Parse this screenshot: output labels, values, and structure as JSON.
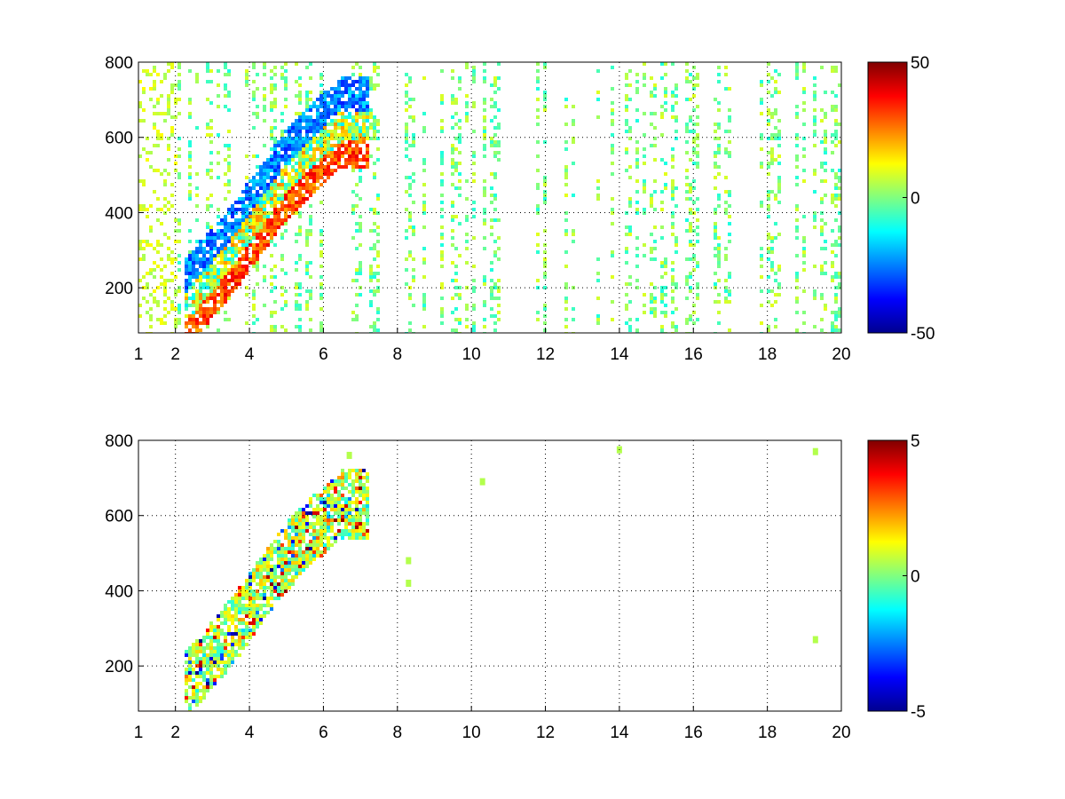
{
  "chart_data": [
    {
      "type": "heatmap",
      "title": "",
      "xlabel": "",
      "ylabel": "",
      "xlim": [
        1,
        20
      ],
      "ylim": [
        80,
        800
      ],
      "x_ticks": [
        1,
        2,
        4,
        6,
        8,
        10,
        12,
        14,
        16,
        18,
        20
      ],
      "y_ticks": [
        200,
        400,
        600,
        800
      ],
      "grid": "dotted",
      "colormap": "jet",
      "colorbar": {
        "range": [
          -50,
          50
        ],
        "ticks": [
          -50,
          0,
          50
        ]
      },
      "features": {
        "ridge": [
          [
            2.3,
            100
          ],
          [
            3,
            180
          ],
          [
            3.6,
            250
          ],
          [
            4.4,
            360
          ],
          [
            5,
            440
          ],
          [
            5.8,
            520
          ],
          [
            6.5,
            580
          ]
        ],
        "positive_band_value": 30,
        "negative_band_value": -25,
        "noise_value_range": [
          -10,
          10
        ]
      }
    },
    {
      "type": "heatmap",
      "title": "",
      "xlabel": "",
      "ylabel": "",
      "xlim": [
        1,
        20
      ],
      "ylim": [
        80,
        800
      ],
      "x_ticks": [
        1,
        2,
        4,
        6,
        8,
        10,
        12,
        14,
        16,
        18,
        20
      ],
      "y_ticks": [
        200,
        400,
        600,
        800
      ],
      "grid": "dotted",
      "colormap": "jet",
      "colorbar": {
        "range": [
          -5,
          5
        ],
        "ticks": [
          -5,
          0,
          5
        ]
      },
      "features": {
        "ridge": [
          [
            2.3,
            100
          ],
          [
            3,
            180
          ],
          [
            3.6,
            250
          ],
          [
            4.4,
            360
          ],
          [
            5,
            440
          ],
          [
            5.8,
            520
          ],
          [
            6.5,
            580
          ]
        ],
        "value_range": [
          -5,
          5
        ],
        "isolated_points": [
          [
            10.3,
            690
          ],
          [
            8.3,
            480
          ],
          [
            8.3,
            420
          ],
          [
            14,
            775
          ],
          [
            19.3,
            770
          ],
          [
            19.3,
            270
          ],
          [
            6.7,
            760
          ]
        ]
      }
    }
  ]
}
